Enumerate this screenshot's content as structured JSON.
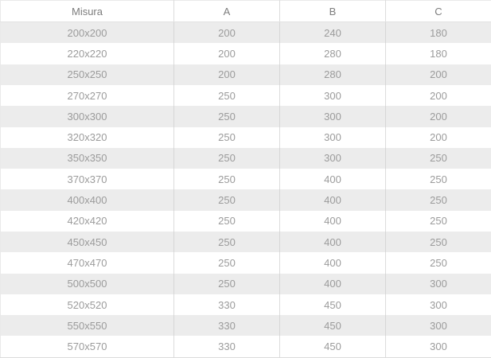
{
  "chart_data": {
    "type": "table",
    "title": "",
    "columns": [
      "Misura",
      "A",
      "B",
      "C"
    ],
    "rows": [
      [
        "200x200",
        "200",
        "240",
        "180"
      ],
      [
        "220x220",
        "200",
        "280",
        "180"
      ],
      [
        "250x250",
        "200",
        "280",
        "200"
      ],
      [
        "270x270",
        "250",
        "300",
        "200"
      ],
      [
        "300x300",
        "250",
        "300",
        "200"
      ],
      [
        "320x320",
        "250",
        "300",
        "200"
      ],
      [
        "350x350",
        "250",
        "300",
        "250"
      ],
      [
        "370x370",
        "250",
        "400",
        "250"
      ],
      [
        "400x400",
        "250",
        "400",
        "250"
      ],
      [
        "420x420",
        "250",
        "400",
        "250"
      ],
      [
        "450x450",
        "250",
        "400",
        "250"
      ],
      [
        "470x470",
        "250",
        "400",
        "250"
      ],
      [
        "500x500",
        "250",
        "400",
        "300"
      ],
      [
        "520x520",
        "330",
        "450",
        "300"
      ],
      [
        "550x550",
        "330",
        "450",
        "300"
      ],
      [
        "570x570",
        "330",
        "450",
        "300"
      ]
    ],
    "layout": {
      "stripe_color": "#ececec",
      "row_background_alt": "#ffffff",
      "border_color": "#dcdcdc",
      "header_text_color": "#7d7d7d",
      "cell_text_color": "#9b9b9b",
      "alignment": "center"
    }
  }
}
